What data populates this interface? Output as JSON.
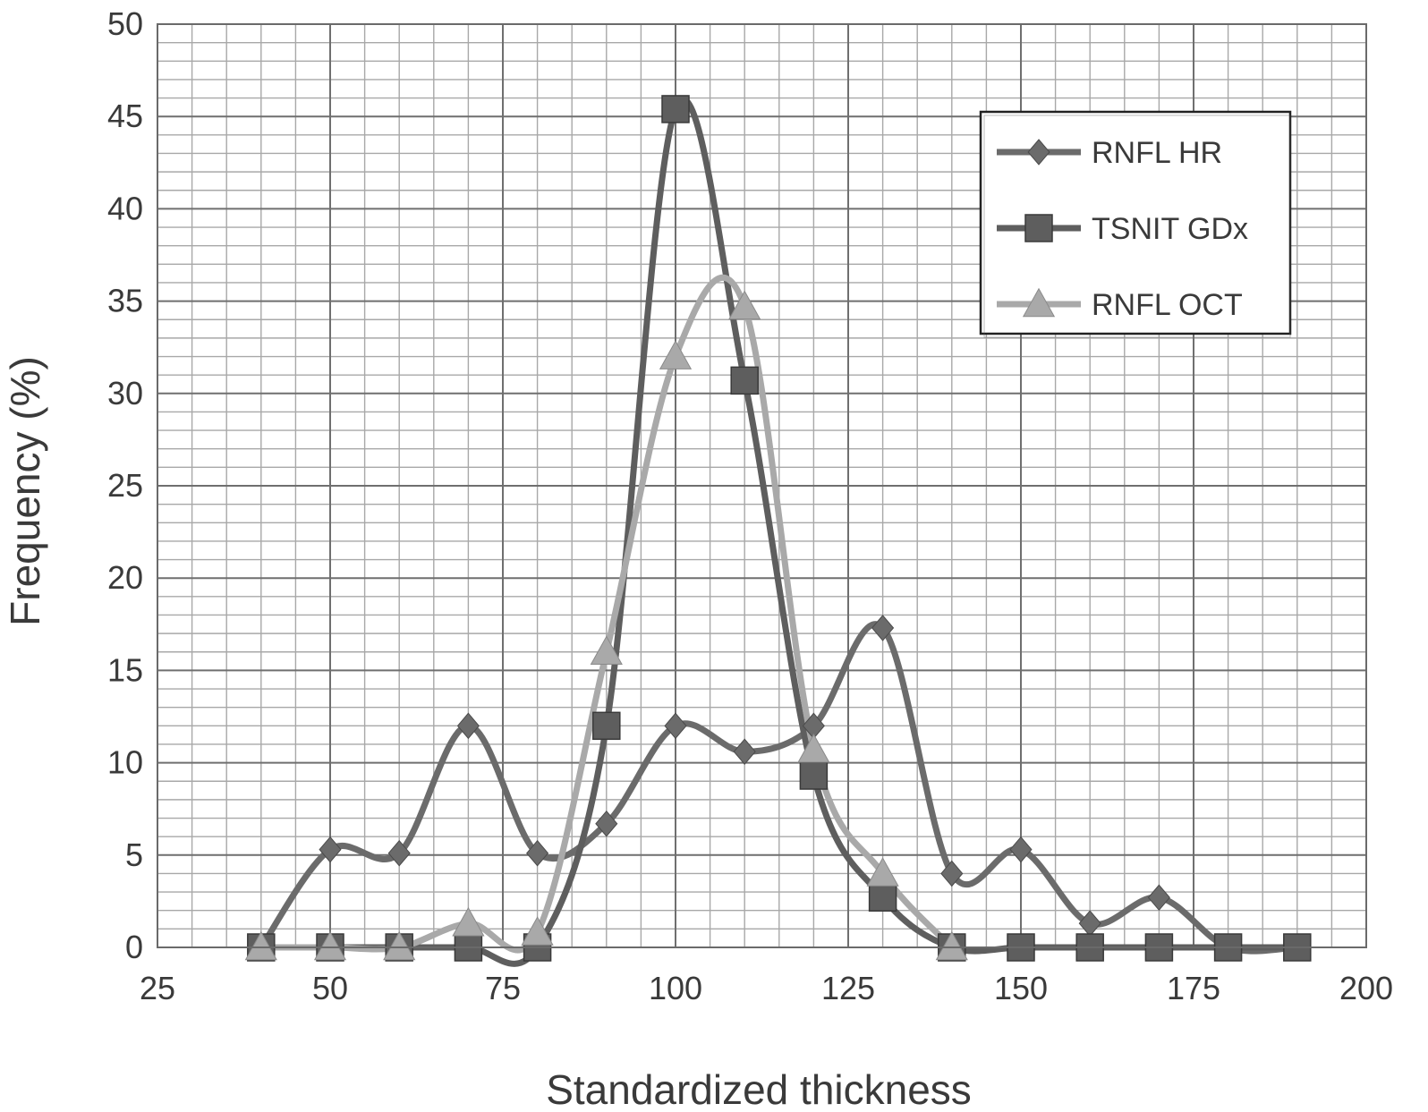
{
  "chart_data": {
    "type": "line",
    "title": "",
    "xlabel": "Standardized thickness",
    "ylabel": "Frequency (%)",
    "xlim": [
      25,
      200
    ],
    "ylim": [
      0,
      50
    ],
    "x_ticks": [
      25,
      50,
      75,
      100,
      125,
      150,
      175,
      200
    ],
    "y_ticks": [
      0,
      5,
      10,
      15,
      20,
      25,
      30,
      35,
      40,
      45,
      50
    ],
    "x_minor_step": 5,
    "y_minor_step": 1,
    "grid": true,
    "legend_position": "top-right",
    "smoothed": true,
    "series": [
      {
        "name": "RNFL HR",
        "marker": "diamond",
        "color": "#6b6b6b",
        "x": [
          40,
          50,
          60,
          70,
          80,
          90,
          100,
          110,
          120,
          130,
          140,
          150,
          160,
          170,
          180,
          190
        ],
        "values": [
          0,
          5.3,
          5.1,
          12.0,
          5.1,
          6.7,
          12.0,
          10.6,
          12.0,
          17.3,
          4.0,
          5.3,
          1.3,
          2.7,
          0,
          0
        ]
      },
      {
        "name": "TSNIT GDx",
        "marker": "square",
        "color": "#5e5e5e",
        "x": [
          40,
          50,
          60,
          70,
          80,
          90,
          100,
          110,
          120,
          130,
          140,
          150,
          160,
          170,
          180,
          190
        ],
        "values": [
          0,
          0,
          0,
          0,
          0,
          12.0,
          45.4,
          30.7,
          9.3,
          2.7,
          0,
          0,
          0,
          0,
          0,
          0
        ]
      },
      {
        "name": "RNFL OCT",
        "marker": "triangle",
        "color": "#a9a9a9",
        "x": [
          40,
          50,
          60,
          70,
          80,
          90,
          100,
          110,
          120,
          130,
          140
        ],
        "values": [
          0,
          0,
          0,
          1.3,
          0.8,
          16.0,
          32.0,
          34.7,
          10.7,
          4.0,
          0
        ]
      }
    ]
  }
}
